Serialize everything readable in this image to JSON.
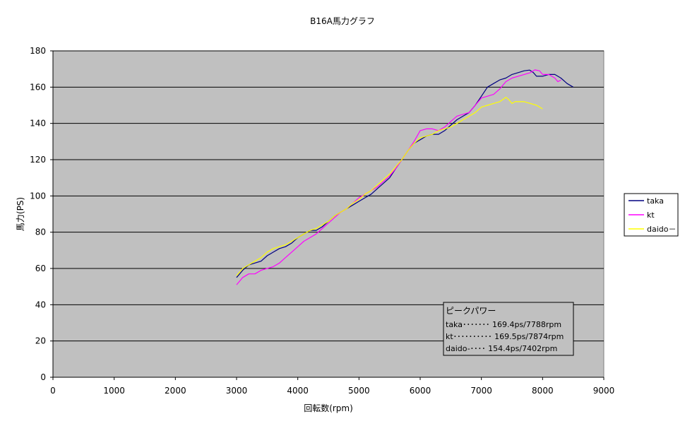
{
  "chart_data": {
    "type": "line",
    "title": "B16A馬力グラフ",
    "xlabel": "回転数(rpm)",
    "ylabel": "馬力(PS)",
    "xlim": [
      0,
      9000
    ],
    "ylim": [
      0,
      180
    ],
    "xticks": [
      0,
      1000,
      2000,
      3000,
      4000,
      5000,
      6000,
      7000,
      8000,
      9000
    ],
    "yticks": [
      0,
      20,
      40,
      60,
      80,
      100,
      120,
      140,
      160,
      180
    ],
    "grid": "horizontal",
    "plot_background": "#c0c0c0",
    "legend_position": "right",
    "series": [
      {
        "name": "taka",
        "color": "#000080",
        "x": [
          3000,
          3100,
          3200,
          3300,
          3400,
          3500,
          3600,
          3700,
          3800,
          3900,
          4000,
          4100,
          4200,
          4300,
          4400,
          4500,
          4600,
          4700,
          4800,
          4900,
          5000,
          5100,
          5200,
          5300,
          5400,
          5500,
          5600,
          5700,
          5800,
          5900,
          6000,
          6100,
          6200,
          6300,
          6400,
          6500,
          6600,
          6700,
          6800,
          6900,
          7000,
          7100,
          7200,
          7300,
          7400,
          7500,
          7600,
          7700,
          7788,
          7850,
          7900,
          8000,
          8100,
          8200,
          8300,
          8400,
          8500
        ],
        "y": [
          55,
          59,
          62,
          63,
          64,
          67,
          69,
          71,
          72,
          74,
          77,
          79,
          81,
          81,
          83,
          86,
          89,
          91,
          93,
          95,
          97,
          99,
          101,
          104,
          107,
          110,
          115,
          120,
          125,
          129,
          131,
          133,
          134,
          134,
          136,
          139,
          142,
          144,
          146,
          150,
          155,
          160,
          162,
          164,
          165,
          167,
          168,
          169,
          169.4,
          168,
          166,
          166,
          167,
          167,
          165,
          162,
          160
        ]
      },
      {
        "name": "kt",
        "color": "#ff00ff",
        "x": [
          3000,
          3100,
          3200,
          3300,
          3400,
          3500,
          3600,
          3700,
          3800,
          3900,
          4000,
          4100,
          4200,
          4300,
          4400,
          4500,
          4600,
          4700,
          4800,
          4900,
          5000,
          5100,
          5200,
          5300,
          5400,
          5500,
          5600,
          5700,
          5800,
          5900,
          6000,
          6100,
          6200,
          6300,
          6400,
          6500,
          6600,
          6700,
          6800,
          6900,
          7000,
          7100,
          7200,
          7300,
          7400,
          7500,
          7600,
          7700,
          7800,
          7874,
          7950,
          8000,
          8100,
          8200,
          8250,
          8300
        ],
        "y": [
          51,
          55,
          57,
          57,
          59,
          60,
          61,
          63,
          66,
          69,
          72,
          75,
          77,
          79,
          82,
          85,
          88,
          91,
          93,
          96,
          99,
          101,
          103,
          105,
          108,
          111,
          115,
          120,
          125,
          130,
          136,
          137,
          137,
          136,
          138,
          141,
          144,
          145,
          146,
          150,
          154,
          155,
          156,
          159,
          163,
          165,
          166,
          167,
          168,
          169.5,
          169,
          167,
          167,
          165,
          163,
          164
        ]
      },
      {
        "name": "daido－",
        "color": "#ffff00",
        "x": [
          3000,
          3100,
          3200,
          3300,
          3400,
          3500,
          3600,
          3700,
          3800,
          3900,
          4000,
          4100,
          4200,
          4300,
          4400,
          4500,
          4600,
          4700,
          4800,
          4900,
          5000,
          5100,
          5200,
          5300,
          5400,
          5500,
          5600,
          5700,
          5800,
          5900,
          6000,
          6100,
          6200,
          6300,
          6400,
          6500,
          6600,
          6700,
          6800,
          6900,
          7000,
          7100,
          7200,
          7300,
          7402,
          7450,
          7500,
          7550,
          7600,
          7700,
          7800,
          7900,
          8000
        ],
        "y": [
          56,
          60,
          62,
          64,
          66,
          69,
          71,
          72,
          73,
          75,
          77,
          79,
          81,
          82,
          84,
          86,
          89,
          91,
          93,
          96,
          98,
          101,
          103,
          106,
          109,
          112,
          116,
          120,
          125,
          129,
          132,
          133,
          134,
          136,
          137,
          138,
          140,
          142,
          144,
          146,
          149,
          150,
          151,
          152,
          154.4,
          153,
          151,
          152,
          152,
          152,
          151,
          150,
          148
        ]
      }
    ],
    "annotation": {
      "title": "ピークパワー",
      "lines": [
        "taka･･･････  169.4ps/7788rpm",
        "kt･･････････  169.5ps/7874rpm",
        "daido-････   154.4ps/7402rpm"
      ]
    }
  }
}
